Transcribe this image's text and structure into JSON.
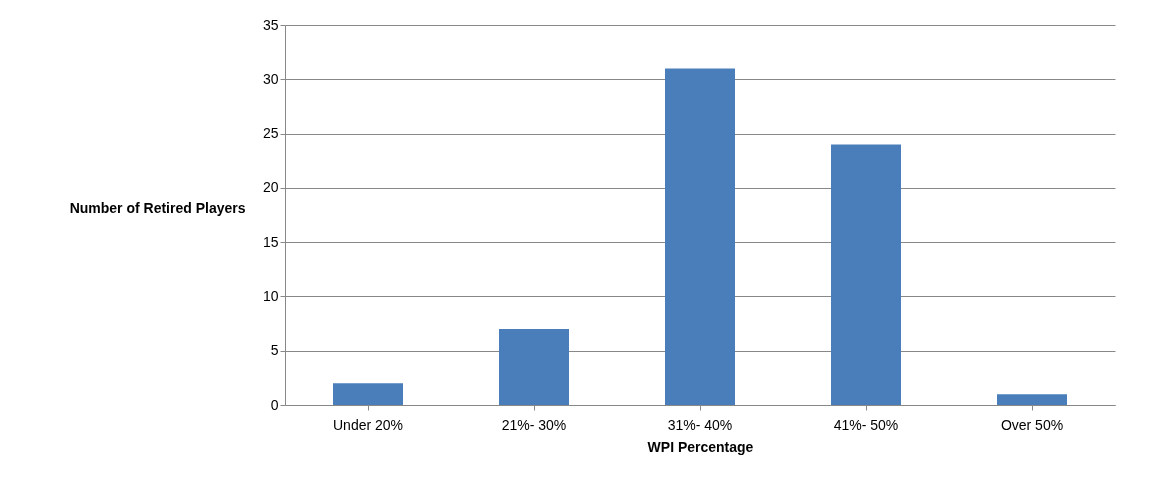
{
  "chart_data": {
    "type": "bar",
    "xlabel": "WPI Percentage",
    "ylabel": "Number of Retired Players",
    "categories": [
      "Under 20%",
      "21%- 30%",
      "31%- 40%",
      "41%- 50%",
      "Over 50%"
    ],
    "values": [
      2,
      7,
      31,
      24,
      1
    ],
    "color": "#4a7ebb",
    "ylim": [
      0,
      35
    ],
    "yticks": [
      0,
      5,
      10,
      15,
      20,
      25,
      30,
      35
    ],
    "grid": "y"
  }
}
